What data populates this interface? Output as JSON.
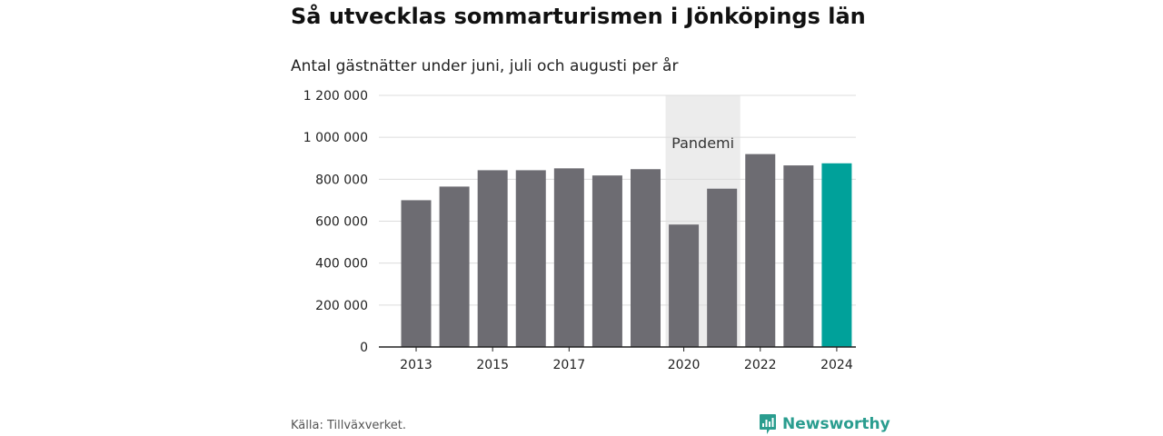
{
  "title": "Så utvecklas sommarturismen i Jönköpings län",
  "subtitle": "Antal gästnätter under juni, juli och augusti per år",
  "source": "Källa: Tillväxverket.",
  "brand": {
    "name": "Newsworthy",
    "icon": "newsworthy-logo-icon",
    "color": "#2a9d8f"
  },
  "chart_data": {
    "type": "bar",
    "categories": [
      "2013",
      "2014",
      "2015",
      "2016",
      "2017",
      "2018",
      "2019",
      "2020",
      "2021",
      "2022",
      "2023",
      "2024"
    ],
    "values": [
      700000,
      765000,
      843000,
      843000,
      852000,
      818000,
      848000,
      584000,
      755000,
      920000,
      866000,
      876000
    ],
    "x_tick_labels": [
      "2013",
      "",
      "2015",
      "",
      "2017",
      "",
      "",
      "2020",
      "",
      "2022",
      "",
      "2024"
    ],
    "y_ticks": [
      0,
      200000,
      400000,
      600000,
      800000,
      1000000,
      1200000
    ],
    "y_tick_labels": [
      "0",
      "200 000",
      "400 000",
      "600 000",
      "800 000",
      "1 000 000",
      "1 200 000"
    ],
    "ylim": [
      0,
      1200000
    ],
    "grid": true,
    "bar_color": "#6d6c72",
    "highlight_color": "#00a19a",
    "highlight_category": "2024",
    "band": {
      "from": "2020",
      "to": "2021",
      "label": "Pandemi",
      "color": "#ececec"
    }
  }
}
